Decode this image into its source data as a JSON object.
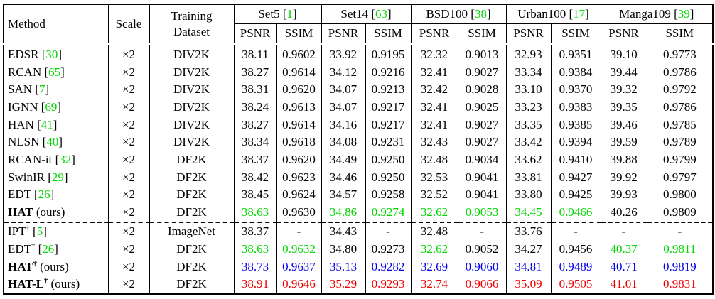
{
  "colors": {
    "k": "#000000",
    "g": "#00d800",
    "b": "#0000ee",
    "r": "#ee0000"
  },
  "symbols": {
    "open": "[",
    "close": "]",
    "dagger": "†"
  },
  "labels": {
    "ours": "(ours)"
  },
  "header": {
    "method": "Method",
    "scale": "Scale",
    "dataset_line1": "Training",
    "dataset_line2": "Dataset",
    "psnr": "PSNR",
    "ssim": "SSIM",
    "groups": [
      {
        "name": "Set5",
        "ref": "1"
      },
      {
        "name": "Set14",
        "ref": "63"
      },
      {
        "name": "BSD100",
        "ref": "38"
      },
      {
        "name": "Urban100",
        "ref": "17"
      },
      {
        "name": "Manga109",
        "ref": "39"
      }
    ]
  },
  "rows": [
    {
      "method": "EDSR",
      "bold": false,
      "dagger": false,
      "ref": "30",
      "ours": false,
      "scale": "×2",
      "dataset": "DIV2K",
      "values": [
        {
          "v": "38.11",
          "c": "k"
        },
        {
          "v": "0.9602",
          "c": "k"
        },
        {
          "v": "33.92",
          "c": "k"
        },
        {
          "v": "0.9195",
          "c": "k"
        },
        {
          "v": "32.32",
          "c": "k"
        },
        {
          "v": "0.9013",
          "c": "k"
        },
        {
          "v": "32.93",
          "c": "k"
        },
        {
          "v": "0.9351",
          "c": "k"
        },
        {
          "v": "39.10",
          "c": "k"
        },
        {
          "v": "0.9773",
          "c": "k"
        }
      ]
    },
    {
      "method": "RCAN",
      "bold": false,
      "dagger": false,
      "ref": "65",
      "ours": false,
      "scale": "×2",
      "dataset": "DIV2K",
      "values": [
        {
          "v": "38.27",
          "c": "k"
        },
        {
          "v": "0.9614",
          "c": "k"
        },
        {
          "v": "34.12",
          "c": "k"
        },
        {
          "v": "0.9216",
          "c": "k"
        },
        {
          "v": "32.41",
          "c": "k"
        },
        {
          "v": "0.9027",
          "c": "k"
        },
        {
          "v": "33.34",
          "c": "k"
        },
        {
          "v": "0.9384",
          "c": "k"
        },
        {
          "v": "39.44",
          "c": "k"
        },
        {
          "v": "0.9786",
          "c": "k"
        }
      ]
    },
    {
      "method": "SAN",
      "bold": false,
      "dagger": false,
      "ref": "7",
      "ours": false,
      "scale": "×2",
      "dataset": "DIV2K",
      "values": [
        {
          "v": "38.31",
          "c": "k"
        },
        {
          "v": "0.9620",
          "c": "k"
        },
        {
          "v": "34.07",
          "c": "k"
        },
        {
          "v": "0.9213",
          "c": "k"
        },
        {
          "v": "32.42",
          "c": "k"
        },
        {
          "v": "0.9028",
          "c": "k"
        },
        {
          "v": "33.10",
          "c": "k"
        },
        {
          "v": "0.9370",
          "c": "k"
        },
        {
          "v": "39.32",
          "c": "k"
        },
        {
          "v": "0.9792",
          "c": "k"
        }
      ]
    },
    {
      "method": "IGNN",
      "bold": false,
      "dagger": false,
      "ref": "69",
      "ours": false,
      "scale": "×2",
      "dataset": "DIV2K",
      "values": [
        {
          "v": "38.24",
          "c": "k"
        },
        {
          "v": "0.9613",
          "c": "k"
        },
        {
          "v": "34.07",
          "c": "k"
        },
        {
          "v": "0.9217",
          "c": "k"
        },
        {
          "v": "32.41",
          "c": "k"
        },
        {
          "v": "0.9025",
          "c": "k"
        },
        {
          "v": "33.23",
          "c": "k"
        },
        {
          "v": "0.9383",
          "c": "k"
        },
        {
          "v": "39.35",
          "c": "k"
        },
        {
          "v": "0.9786",
          "c": "k"
        }
      ]
    },
    {
      "method": "HAN",
      "bold": false,
      "dagger": false,
      "ref": "41",
      "ours": false,
      "scale": "×2",
      "dataset": "DIV2K",
      "values": [
        {
          "v": "38.27",
          "c": "k"
        },
        {
          "v": "0.9614",
          "c": "k"
        },
        {
          "v": "34.16",
          "c": "k"
        },
        {
          "v": "0.9217",
          "c": "k"
        },
        {
          "v": "32.41",
          "c": "k"
        },
        {
          "v": "0.9027",
          "c": "k"
        },
        {
          "v": "33.35",
          "c": "k"
        },
        {
          "v": "0.9385",
          "c": "k"
        },
        {
          "v": "39.46",
          "c": "k"
        },
        {
          "v": "0.9785",
          "c": "k"
        }
      ]
    },
    {
      "method": "NLSN",
      "bold": false,
      "dagger": false,
      "ref": "40",
      "ours": false,
      "scale": "×2",
      "dataset": "DIV2K",
      "values": [
        {
          "v": "38.34",
          "c": "k"
        },
        {
          "v": "0.9618",
          "c": "k"
        },
        {
          "v": "34.08",
          "c": "k"
        },
        {
          "v": "0.9231",
          "c": "k"
        },
        {
          "v": "32.43",
          "c": "k"
        },
        {
          "v": "0.9027",
          "c": "k"
        },
        {
          "v": "33.42",
          "c": "k"
        },
        {
          "v": "0.9394",
          "c": "k"
        },
        {
          "v": "39.59",
          "c": "k"
        },
        {
          "v": "0.9789",
          "c": "k"
        }
      ]
    },
    {
      "method": "RCAN-it",
      "bold": false,
      "dagger": false,
      "ref": "32",
      "ours": false,
      "scale": "×2",
      "dataset": "DF2K",
      "values": [
        {
          "v": "38.37",
          "c": "k"
        },
        {
          "v": "0.9620",
          "c": "k"
        },
        {
          "v": "34.49",
          "c": "k"
        },
        {
          "v": "0.9250",
          "c": "k"
        },
        {
          "v": "32.48",
          "c": "k"
        },
        {
          "v": "0.9034",
          "c": "k"
        },
        {
          "v": "33.62",
          "c": "k"
        },
        {
          "v": "0.9410",
          "c": "k"
        },
        {
          "v": "39.88",
          "c": "k"
        },
        {
          "v": "0.9799",
          "c": "k"
        }
      ]
    },
    {
      "method": "SwinIR",
      "bold": false,
      "dagger": false,
      "ref": "29",
      "ours": false,
      "scale": "×2",
      "dataset": "DF2K",
      "values": [
        {
          "v": "38.42",
          "c": "k"
        },
        {
          "v": "0.9623",
          "c": "k"
        },
        {
          "v": "34.46",
          "c": "k"
        },
        {
          "v": "0.9250",
          "c": "k"
        },
        {
          "v": "32.53",
          "c": "k"
        },
        {
          "v": "0.9041",
          "c": "k"
        },
        {
          "v": "33.81",
          "c": "k"
        },
        {
          "v": "0.9427",
          "c": "k"
        },
        {
          "v": "39.92",
          "c": "k"
        },
        {
          "v": "0.9797",
          "c": "k"
        }
      ]
    },
    {
      "method": "EDT",
      "bold": false,
      "dagger": false,
      "ref": "26",
      "ours": false,
      "scale": "×2",
      "dataset": "DF2K",
      "values": [
        {
          "v": "38.45",
          "c": "k"
        },
        {
          "v": "0.9624",
          "c": "k"
        },
        {
          "v": "34.57",
          "c": "k"
        },
        {
          "v": "0.9258",
          "c": "k"
        },
        {
          "v": "32.52",
          "c": "k"
        },
        {
          "v": "0.9041",
          "c": "k"
        },
        {
          "v": "33.80",
          "c": "k"
        },
        {
          "v": "0.9425",
          "c": "k"
        },
        {
          "v": "39.93",
          "c": "k"
        },
        {
          "v": "0.9800",
          "c": "k"
        }
      ]
    },
    {
      "method": "HAT",
      "bold": true,
      "dagger": false,
      "ref": "",
      "ours": true,
      "scale": "×2",
      "dataset": "DF2K",
      "values": [
        {
          "v": "38.63",
          "c": "g"
        },
        {
          "v": "0.9630",
          "c": "k"
        },
        {
          "v": "34.86",
          "c": "g"
        },
        {
          "v": "0.9274",
          "c": "g"
        },
        {
          "v": "32.62",
          "c": "g"
        },
        {
          "v": "0.9053",
          "c": "g"
        },
        {
          "v": "34.45",
          "c": "g"
        },
        {
          "v": "0.9466",
          "c": "g"
        },
        {
          "v": "40.26",
          "c": "k"
        },
        {
          "v": "0.9809",
          "c": "k"
        }
      ]
    },
    {
      "method": "IPT",
      "bold": false,
      "dagger": true,
      "ref": "5",
      "ours": false,
      "scale": "×2",
      "dataset": "ImageNet",
      "dash_top": true,
      "values": [
        {
          "v": "38.37",
          "c": "k"
        },
        {
          "v": "-",
          "c": "k"
        },
        {
          "v": "34.43",
          "c": "k"
        },
        {
          "v": "-",
          "c": "k"
        },
        {
          "v": "32.48",
          "c": "k"
        },
        {
          "v": "-",
          "c": "k"
        },
        {
          "v": "33.76",
          "c": "k"
        },
        {
          "v": "-",
          "c": "k"
        },
        {
          "v": "-",
          "c": "k"
        },
        {
          "v": "-",
          "c": "k"
        }
      ]
    },
    {
      "method": "EDT",
      "bold": false,
      "dagger": true,
      "ref": "26",
      "ours": false,
      "scale": "×2",
      "dataset": "DF2K",
      "values": [
        {
          "v": "38.63",
          "c": "g"
        },
        {
          "v": "0.9632",
          "c": "g"
        },
        {
          "v": "34.80",
          "c": "k"
        },
        {
          "v": "0.9273",
          "c": "k"
        },
        {
          "v": "32.62",
          "c": "g"
        },
        {
          "v": "0.9052",
          "c": "k"
        },
        {
          "v": "34.27",
          "c": "k"
        },
        {
          "v": "0.9456",
          "c": "k"
        },
        {
          "v": "40.37",
          "c": "g"
        },
        {
          "v": "0.9811",
          "c": "g"
        }
      ]
    },
    {
      "method": "HAT",
      "bold": true,
      "dagger": true,
      "ref": "",
      "ours": true,
      "scale": "×2",
      "dataset": "DF2K",
      "values": [
        {
          "v": "38.73",
          "c": "b"
        },
        {
          "v": "0.9637",
          "c": "b"
        },
        {
          "v": "35.13",
          "c": "b"
        },
        {
          "v": "0.9282",
          "c": "b"
        },
        {
          "v": "32.69",
          "c": "b"
        },
        {
          "v": "0.9060",
          "c": "b"
        },
        {
          "v": "34.81",
          "c": "b"
        },
        {
          "v": "0.9489",
          "c": "b"
        },
        {
          "v": "40.71",
          "c": "b"
        },
        {
          "v": "0.9819",
          "c": "b"
        }
      ]
    },
    {
      "method": "HAT-L",
      "bold": true,
      "dagger": true,
      "ref": "",
      "ours": true,
      "scale": "×2",
      "dataset": "DF2K",
      "values": [
        {
          "v": "38.91",
          "c": "r"
        },
        {
          "v": "0.9646",
          "c": "r"
        },
        {
          "v": "35.29",
          "c": "r"
        },
        {
          "v": "0.9293",
          "c": "r"
        },
        {
          "v": "32.74",
          "c": "r"
        },
        {
          "v": "0.9066",
          "c": "r"
        },
        {
          "v": "35.09",
          "c": "r"
        },
        {
          "v": "0.9505",
          "c": "r"
        },
        {
          "v": "41.01",
          "c": "r"
        },
        {
          "v": "0.9831",
          "c": "r"
        }
      ]
    }
  ]
}
